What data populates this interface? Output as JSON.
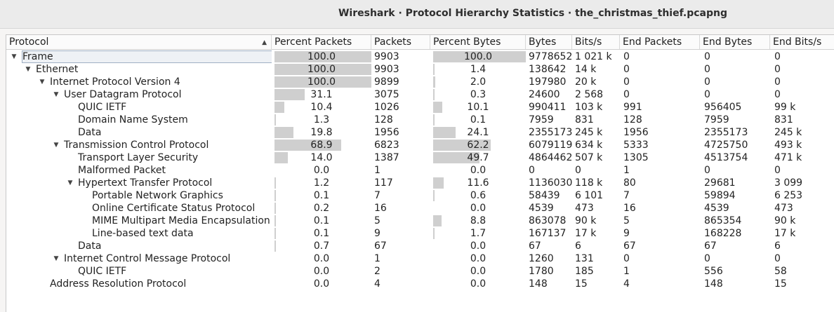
{
  "window": {
    "title": "Wireshark · Protocol Hierarchy Statistics · the_christmas_thief.pcapng"
  },
  "columns": [
    "Protocol",
    "Percent Packets",
    "Packets",
    "Percent Bytes",
    "Bytes",
    "Bits/s",
    "End Packets",
    "End Bytes",
    "End Bits/s"
  ],
  "rows": [
    {
      "name": "Frame",
      "depth": 0,
      "expander": "expanded",
      "selected": true,
      "pct_packets": "100.0",
      "pct_packets_fill": 100,
      "packets": "9903",
      "pct_bytes": "100.0",
      "pct_bytes_fill": 100,
      "bytes": "9778652",
      "bits": "1 021 k",
      "end_packets": "0",
      "end_bytes": "0",
      "end_bits": "0"
    },
    {
      "name": "Ethernet",
      "depth": 1,
      "expander": "expanded",
      "pct_packets": "100.0",
      "pct_packets_fill": 100,
      "packets": "9903",
      "pct_bytes": "1.4",
      "pct_bytes_fill": 1.4,
      "bytes": "138642",
      "bits": "14 k",
      "end_packets": "0",
      "end_bytes": "0",
      "end_bits": "0"
    },
    {
      "name": "Internet Protocol Version 4",
      "depth": 2,
      "expander": "expanded",
      "pct_packets": "100.0",
      "pct_packets_fill": 100,
      "packets": "9899",
      "pct_bytes": "2.0",
      "pct_bytes_fill": 2.0,
      "bytes": "197980",
      "bits": "20 k",
      "end_packets": "0",
      "end_bytes": "0",
      "end_bits": "0"
    },
    {
      "name": "User Datagram Protocol",
      "depth": 3,
      "expander": "expanded",
      "pct_packets": "31.1",
      "pct_packets_fill": 31.1,
      "packets": "3075",
      "pct_bytes": "0.3",
      "pct_bytes_fill": 0.3,
      "bytes": "24600",
      "bits": "2 568",
      "end_packets": "0",
      "end_bytes": "0",
      "end_bits": "0"
    },
    {
      "name": "QUIC IETF",
      "depth": 4,
      "expander": "none",
      "pct_packets": "10.4",
      "pct_packets_fill": 10.4,
      "packets": "1026",
      "pct_bytes": "10.1",
      "pct_bytes_fill": 10.1,
      "bytes": "990411",
      "bits": "103 k",
      "end_packets": "991",
      "end_bytes": "956405",
      "end_bits": "99 k"
    },
    {
      "name": "Domain Name System",
      "depth": 4,
      "expander": "none",
      "pct_packets": "1.3",
      "pct_packets_fill": 1.3,
      "packets": "128",
      "pct_bytes": "0.1",
      "pct_bytes_fill": 0.1,
      "bytes": "7959",
      "bits": "831",
      "end_packets": "128",
      "end_bytes": "7959",
      "end_bits": "831"
    },
    {
      "name": "Data",
      "depth": 4,
      "expander": "none",
      "pct_packets": "19.8",
      "pct_packets_fill": 19.8,
      "packets": "1956",
      "pct_bytes": "24.1",
      "pct_bytes_fill": 24.1,
      "bytes": "2355173",
      "bits": "245 k",
      "end_packets": "1956",
      "end_bytes": "2355173",
      "end_bits": "245 k"
    },
    {
      "name": "Transmission Control Protocol",
      "depth": 3,
      "expander": "expanded",
      "pct_packets": "68.9",
      "pct_packets_fill": 68.9,
      "packets": "6823",
      "pct_bytes": "62.2",
      "pct_bytes_fill": 62.2,
      "bytes": "6079119",
      "bits": "634 k",
      "end_packets": "5333",
      "end_bytes": "4725750",
      "end_bits": "493 k"
    },
    {
      "name": "Transport Layer Security",
      "depth": 4,
      "expander": "none",
      "pct_packets": "14.0",
      "pct_packets_fill": 14.0,
      "packets": "1387",
      "pct_bytes": "49.7",
      "pct_bytes_fill": 49.7,
      "bytes": "4864462",
      "bits": "507 k",
      "end_packets": "1305",
      "end_bytes": "4513754",
      "end_bits": "471 k"
    },
    {
      "name": "Malformed Packet",
      "depth": 4,
      "expander": "none",
      "pct_packets": "0.0",
      "pct_packets_fill": 0,
      "packets": "1",
      "pct_bytes": "0.0",
      "pct_bytes_fill": 0,
      "bytes": "0",
      "bits": "0",
      "end_packets": "1",
      "end_bytes": "0",
      "end_bits": "0"
    },
    {
      "name": "Hypertext Transfer Protocol",
      "depth": 4,
      "expander": "expanded",
      "pct_packets": "1.2",
      "pct_packets_fill": 1.2,
      "packets": "117",
      "pct_bytes": "11.6",
      "pct_bytes_fill": 11.6,
      "bytes": "1136030",
      "bits": "118 k",
      "end_packets": "80",
      "end_bytes": "29681",
      "end_bits": "3 099"
    },
    {
      "name": "Portable Network Graphics",
      "depth": 5,
      "expander": "none",
      "pct_packets": "0.1",
      "pct_packets_fill": 0.1,
      "packets": "7",
      "pct_bytes": "0.6",
      "pct_bytes_fill": 0.6,
      "bytes": "58439",
      "bits": "6 101",
      "end_packets": "7",
      "end_bytes": "59894",
      "end_bits": "6 253"
    },
    {
      "name": "Online Certificate Status Protocol",
      "depth": 5,
      "expander": "none",
      "pct_packets": "0.2",
      "pct_packets_fill": 0.2,
      "packets": "16",
      "pct_bytes": "0.0",
      "pct_bytes_fill": 0,
      "bytes": "4539",
      "bits": "473",
      "end_packets": "16",
      "end_bytes": "4539",
      "end_bits": "473"
    },
    {
      "name": "MIME Multipart Media Encapsulation",
      "depth": 5,
      "expander": "none",
      "pct_packets": "0.1",
      "pct_packets_fill": 0.1,
      "packets": "5",
      "pct_bytes": "8.8",
      "pct_bytes_fill": 8.8,
      "bytes": "863078",
      "bits": "90 k",
      "end_packets": "5",
      "end_bytes": "865354",
      "end_bits": "90 k"
    },
    {
      "name": "Line-based text data",
      "depth": 5,
      "expander": "none",
      "pct_packets": "0.1",
      "pct_packets_fill": 0.1,
      "packets": "9",
      "pct_bytes": "1.7",
      "pct_bytes_fill": 1.7,
      "bytes": "167137",
      "bits": "17 k",
      "end_packets": "9",
      "end_bytes": "168228",
      "end_bits": "17 k"
    },
    {
      "name": "Data",
      "depth": 4,
      "expander": "none",
      "pct_packets": "0.7",
      "pct_packets_fill": 0.7,
      "packets": "67",
      "pct_bytes": "0.0",
      "pct_bytes_fill": 0,
      "bytes": "67",
      "bits": "6",
      "end_packets": "67",
      "end_bytes": "67",
      "end_bits": "6"
    },
    {
      "name": "Internet Control Message Protocol",
      "depth": 3,
      "expander": "expanded",
      "pct_packets": "0.0",
      "pct_packets_fill": 0,
      "packets": "1",
      "pct_bytes": "0.0",
      "pct_bytes_fill": 0,
      "bytes": "1260",
      "bits": "131",
      "end_packets": "0",
      "end_bytes": "0",
      "end_bits": "0"
    },
    {
      "name": "QUIC IETF",
      "depth": 4,
      "expander": "none",
      "pct_packets": "0.0",
      "pct_packets_fill": 0,
      "packets": "2",
      "pct_bytes": "0.0",
      "pct_bytes_fill": 0,
      "bytes": "1780",
      "bits": "185",
      "end_packets": "1",
      "end_bytes": "556",
      "end_bits": "58"
    },
    {
      "name": "Address Resolution Protocol",
      "depth": 2,
      "expander": "none",
      "pct_packets": "0.0",
      "pct_packets_fill": 0,
      "packets": "4",
      "pct_bytes": "0.0",
      "pct_bytes_fill": 0,
      "bytes": "148",
      "bits": "15",
      "end_packets": "4",
      "end_bytes": "148",
      "end_bits": "15"
    }
  ]
}
